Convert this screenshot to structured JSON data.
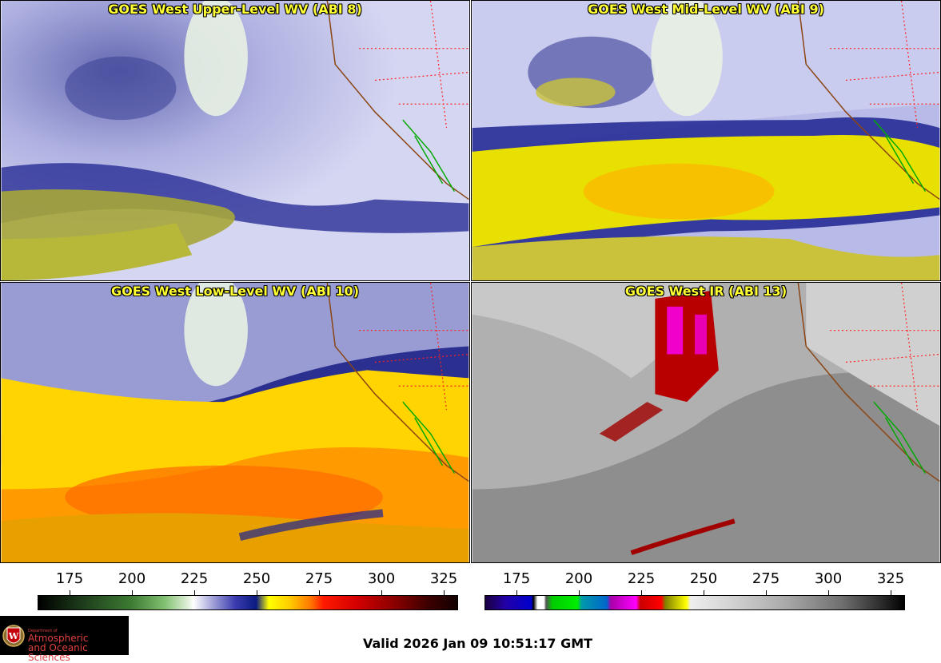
{
  "panels": [
    {
      "title": "GOES West Upper-Level WV (ABI 8)",
      "palette": "wv-upper"
    },
    {
      "title": "GOES West Mid-Level WV (ABI 9)",
      "palette": "wv-mid"
    },
    {
      "title": "GOES West Low-Level WV (ABI 10)",
      "palette": "wv-low"
    },
    {
      "title": "GOES West IR (ABI 13)",
      "palette": "ir"
    }
  ],
  "colorbars": {
    "left": {
      "ticks": [
        "175",
        "200",
        "225",
        "250",
        "275",
        "300",
        "325"
      ]
    },
    "right": {
      "ticks": [
        "175",
        "200",
        "225",
        "250",
        "275",
        "300",
        "325"
      ]
    }
  },
  "logo": {
    "department_of": "Department of",
    "line1": "Atmospheric",
    "line2": "and Oceanic Sciences"
  },
  "valid_time": "Valid 2026 Jan 09 10:51:17 GMT",
  "colors": {
    "title_text": "#ffff33",
    "state_borders": "#ff2020",
    "coastline": "#8b4513",
    "mexico_coast": "#00aa00"
  }
}
